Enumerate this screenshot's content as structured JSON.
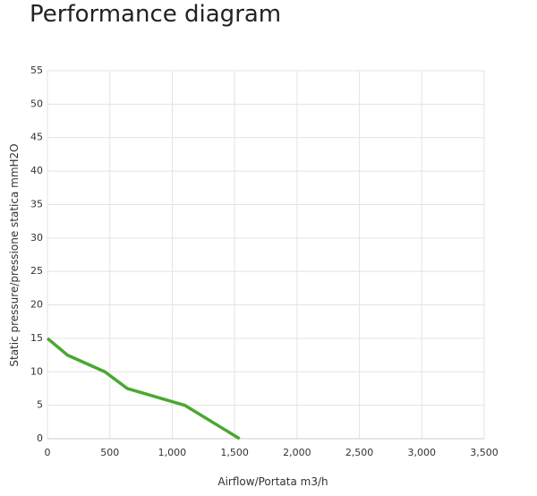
{
  "chart_data": {
    "type": "line",
    "title": "Performance diagram",
    "x_label": "Airflow/Portata m3/h",
    "y_label": "Static pressure/pressione statica mmH2O",
    "x": [
      0,
      160,
      460,
      640,
      1100,
      1540
    ],
    "series": [
      {
        "color": "#4aa832",
        "values": [
          15,
          12.5,
          10,
          7.5,
          5,
          0
        ]
      }
    ],
    "xlim": [
      0,
      3500
    ],
    "xticks": [
      0,
      500,
      {
        "value": 1000,
        "label": "1,000"
      },
      {
        "value": 1500,
        "label": "1,500"
      },
      {
        "value": 2000,
        "label": "2,000"
      },
      {
        "value": 2500,
        "label": "2,500"
      },
      {
        "value": 3000,
        "label": "3,000"
      },
      {
        "value": 3500,
        "label": "3,500"
      }
    ],
    "ylim": [
      0,
      55
    ],
    "yticks": [
      0,
      5,
      10,
      15,
      20,
      25,
      30,
      35,
      40,
      45,
      50,
      55
    ],
    "grid": true
  }
}
